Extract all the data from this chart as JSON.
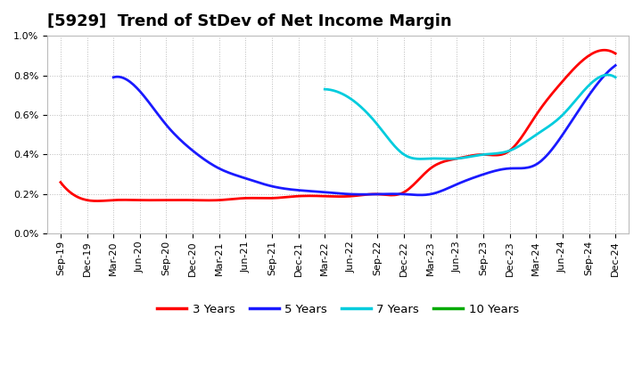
{
  "title": "[5929]  Trend of StDev of Net Income Margin",
  "background_color": "#ffffff",
  "plot_bg_color": "#ffffff",
  "grid_color": "#aaaaaa",
  "ylim": [
    0.0,
    0.01
  ],
  "yticks": [
    0.0,
    0.002,
    0.004,
    0.006,
    0.008,
    0.01
  ],
  "xtick_dates": [
    "Sep-19",
    "Dec-19",
    "Mar-20",
    "Jun-20",
    "Sep-20",
    "Dec-20",
    "Mar-21",
    "Jun-21",
    "Sep-21",
    "Dec-21",
    "Mar-22",
    "Jun-22",
    "Sep-22",
    "Dec-22",
    "Mar-23",
    "Jun-23",
    "Sep-23",
    "Dec-23",
    "Mar-24",
    "Jun-24",
    "Sep-24",
    "Dec-24"
  ],
  "series_3y": {
    "color": "#ff0000",
    "x": [
      0,
      1,
      2,
      3,
      4,
      5,
      6,
      7,
      8,
      9,
      10,
      11,
      12,
      13,
      14,
      15,
      16,
      17,
      18,
      19,
      20,
      21
    ],
    "y": [
      0.0026,
      0.0017,
      0.0017,
      0.0017,
      0.0017,
      0.0017,
      0.0017,
      0.0018,
      0.0018,
      0.0019,
      0.0019,
      0.0019,
      0.002,
      0.0021,
      0.0033,
      0.0038,
      0.004,
      0.0042,
      0.006,
      0.0077,
      0.009,
      0.0091
    ]
  },
  "series_5y": {
    "color": "#1a1aff",
    "x": [
      2,
      3,
      4,
      5,
      6,
      7,
      8,
      9,
      10,
      11,
      12,
      13,
      14,
      15,
      16,
      17,
      18,
      19,
      20,
      21
    ],
    "y": [
      0.0079,
      0.0072,
      0.0055,
      0.0042,
      0.0033,
      0.0028,
      0.0024,
      0.0022,
      0.0021,
      0.002,
      0.002,
      0.002,
      0.002,
      0.0025,
      0.003,
      0.0033,
      0.0035,
      0.005,
      0.007,
      0.0085
    ]
  },
  "series_7y": {
    "color": "#00ccdd",
    "x": [
      10,
      11,
      12,
      13,
      14,
      15,
      16,
      17,
      18,
      19,
      20,
      21
    ],
    "y": [
      0.0073,
      0.0068,
      0.0055,
      0.004,
      0.0038,
      0.0038,
      0.004,
      0.0042,
      0.005,
      0.006,
      0.0075,
      0.0079
    ]
  },
  "series_10y": {
    "color": "#00aa00",
    "x": [],
    "y": []
  },
  "legend_labels": [
    "3 Years",
    "5 Years",
    "7 Years",
    "10 Years"
  ],
  "legend_colors": [
    "#ff0000",
    "#1a1aff",
    "#00ccdd",
    "#00aa00"
  ],
  "title_fontsize": 13,
  "tick_fontsize": 8,
  "legend_fontsize": 9.5
}
